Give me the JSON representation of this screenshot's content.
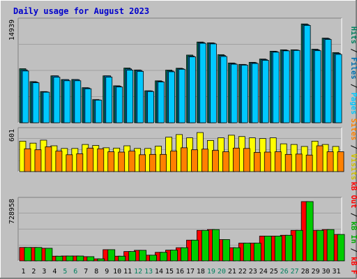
{
  "chart_data": [
    {
      "panel": "hits-files-pages",
      "type": "bar",
      "title": "Daily usage for August 2023",
      "y_max_label": "14939",
      "legend": [
        {
          "text": "Pages",
          "color": "#00c8ff"
        },
        {
          "text": "Files",
          "color": "#0070b0"
        },
        {
          "text": "Hits",
          "color": "#00805e"
        }
      ],
      "x_max": 14939,
      "series": [
        {
          "name": "Hits",
          "color": "#00805e",
          "values": [
            8040,
            6120,
            4640,
            6980,
            6420,
            6440,
            5220,
            3450,
            6980,
            5500,
            8140,
            7850,
            4760,
            6240,
            7830,
            8110,
            10070,
            12010,
            11890,
            10130,
            8890,
            8680,
            8990,
            9480,
            10640,
            10850,
            10850,
            14700,
            10940,
            12590,
            10440
          ]
        },
        {
          "name": "Files",
          "color": "#0070b0",
          "values": [
            7870,
            6050,
            4600,
            6980,
            6420,
            6420,
            5170,
            3400,
            6980,
            5440,
            8010,
            7790,
            4740,
            6150,
            7700,
            8040,
            9930,
            11930,
            11840,
            10000,
            8820,
            8660,
            8930,
            9410,
            10590,
            10780,
            10820,
            14600,
            10850,
            12520,
            10320
          ]
        },
        {
          "name": "Pages",
          "color": "#00c8ff",
          "values": [
            7700,
            5950,
            4550,
            6780,
            6250,
            6250,
            5060,
            3370,
            6790,
            5320,
            7830,
            7640,
            4650,
            6070,
            7580,
            7960,
            9810,
            11820,
            11730,
            9860,
            8710,
            8580,
            8820,
            9290,
            10500,
            10700,
            10760,
            14480,
            10720,
            12390,
            10170
          ]
        }
      ]
    },
    {
      "panel": "visits-sites",
      "type": "bar",
      "y_max_label": "601",
      "legend": [
        {
          "text": "Visits",
          "color": "#d0c000"
        },
        {
          "text": "Sites",
          "color": "#ff8000"
        }
      ],
      "x_max": 601,
      "series": [
        {
          "name": "Visits",
          "color": "#ffff00",
          "values": [
            460,
            430,
            475,
            390,
            350,
            350,
            410,
            395,
            360,
            355,
            390,
            350,
            350,
            385,
            520,
            560,
            510,
            590,
            470,
            510,
            550,
            530,
            510,
            500,
            510,
            420,
            410,
            380,
            460,
            410,
            380
          ]
        },
        {
          "name": "Sites",
          "color": "#ff8000",
          "values": [
            345,
            330,
            375,
            310,
            255,
            270,
            355,
            345,
            300,
            295,
            310,
            255,
            260,
            260,
            310,
            360,
            330,
            340,
            320,
            300,
            355,
            350,
            290,
            295,
            300,
            260,
            265,
            250,
            390,
            300,
            300
          ]
        }
      ]
    },
    {
      "panel": "kbf-kbin-kbout",
      "type": "bar",
      "y_max_label": "728958",
      "legend": [
        {
          "text": "kB F",
          "color": "#ff0000"
        },
        {
          "text": "kB In",
          "color": "#00aa00"
        },
        {
          "text": "kB Out",
          "color": "#ff0000"
        }
      ],
      "x_max": 728958,
      "series": [
        {
          "name": "kB F",
          "color": "#ff0000",
          "values": [
            165000,
            165000,
            155000,
            58000,
            60000,
            60000,
            52000,
            25000,
            138000,
            58000,
            115000,
            130000,
            70000,
            105000,
            132000,
            162000,
            255000,
            375000,
            385000,
            262000,
            162000,
            218000,
            218000,
            305000,
            305000,
            315000,
            375000,
            728958,
            375000,
            385000,
            325000
          ]
        },
        {
          "name": "kB In",
          "color": "#00cc00",
          "values": [
            165000,
            165000,
            155000,
            58000,
            60000,
            60000,
            52000,
            25000,
            138000,
            58000,
            115000,
            130000,
            70000,
            105000,
            132000,
            162000,
            255000,
            375000,
            385000,
            262000,
            162000,
            218000,
            218000,
            305000,
            305000,
            315000,
            375000,
            728958,
            375000,
            385000,
            325000
          ]
        }
      ]
    }
  ],
  "x_labels": [
    "1",
    "2",
    "3",
    "4",
    "5",
    "6",
    "7",
    "8",
    "9",
    "10",
    "11",
    "12",
    "13",
    "14",
    "15",
    "16",
    "17",
    "18",
    "19",
    "20",
    "21",
    "22",
    "23",
    "24",
    "25",
    "26",
    "27",
    "28",
    "29",
    "30",
    "31"
  ],
  "weekend_days": [
    5,
    6,
    12,
    13,
    19,
    20,
    26,
    27
  ]
}
